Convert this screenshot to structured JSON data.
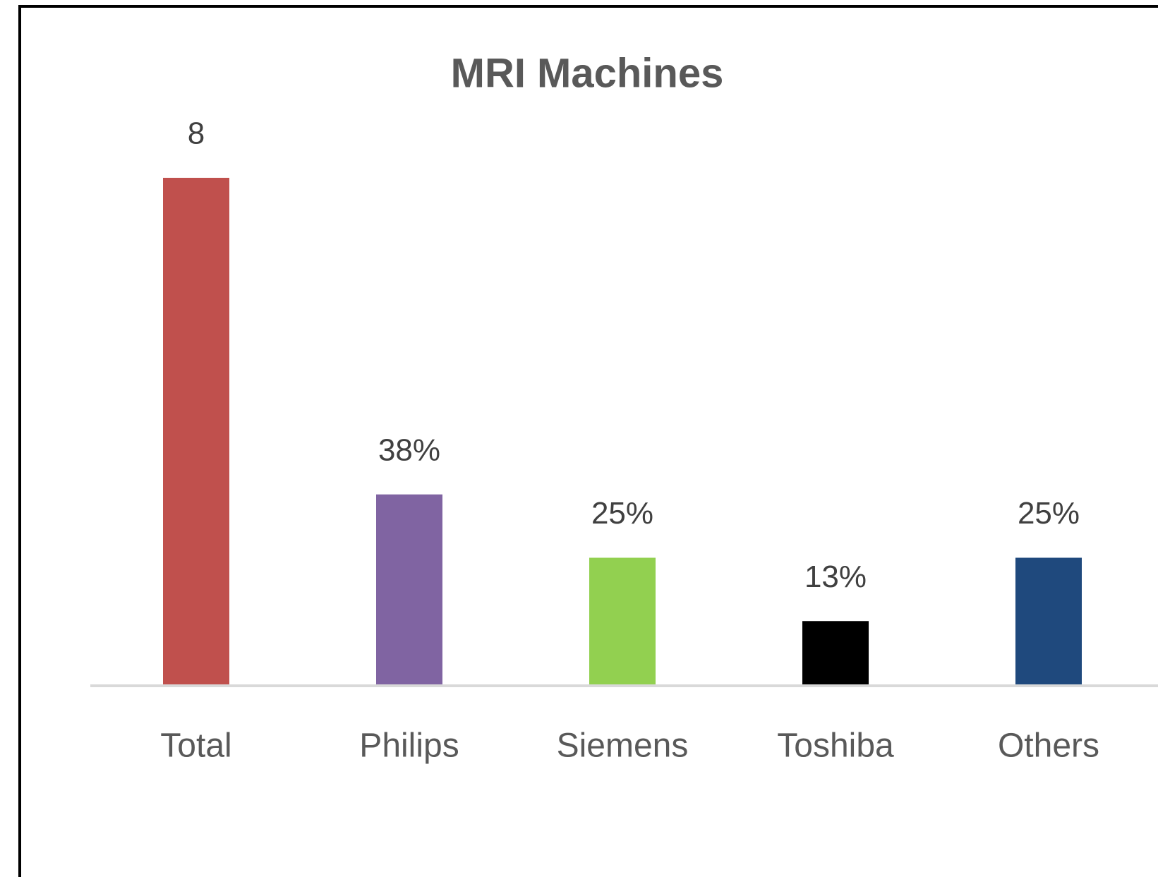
{
  "chart_data": {
    "type": "bar",
    "title": "MRI Machines",
    "categories": [
      "Total",
      "Philips",
      "Siemens",
      "Toshiba",
      "Others"
    ],
    "values": [
      8,
      3,
      2,
      1,
      2
    ],
    "value_labels": [
      "8",
      "38%",
      "25%",
      "13%",
      "25%"
    ],
    "colors": [
      "#c0504d",
      "#8064a2",
      "#92d050",
      "#000000",
      "#1f497d"
    ]
  }
}
